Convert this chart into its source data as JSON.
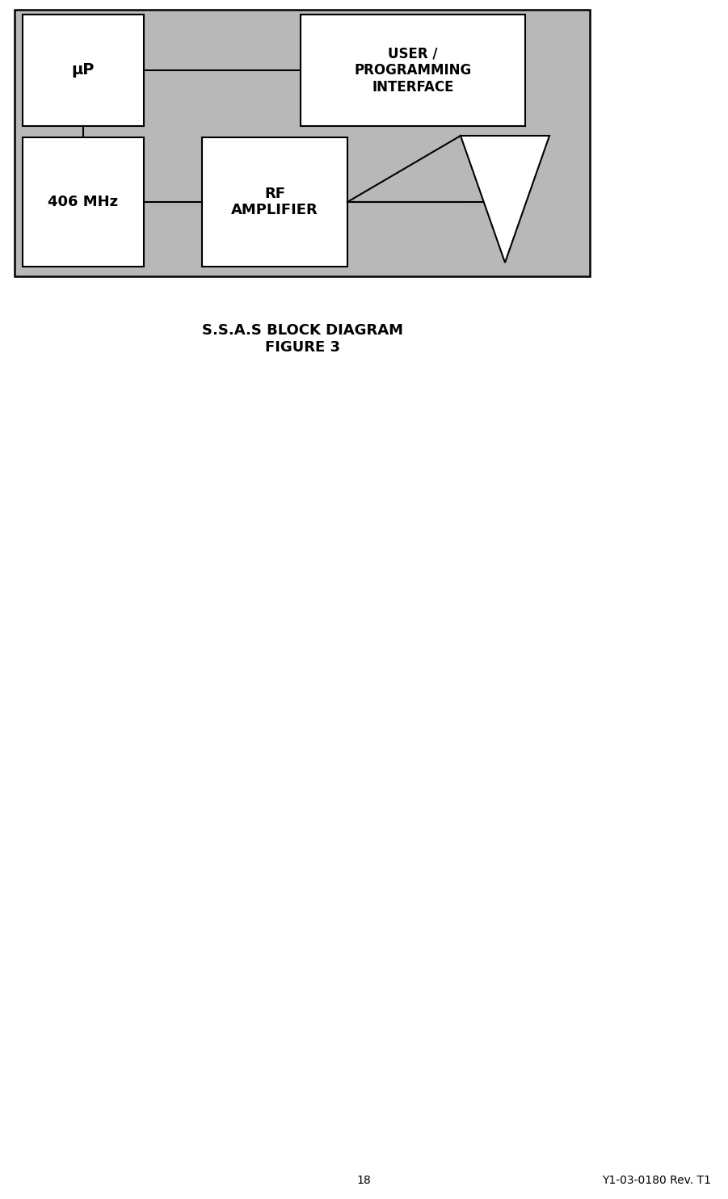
{
  "fig_width": 9.01,
  "fig_height": 14.84,
  "dpi": 100,
  "bg_color": "#ffffff",
  "gray_bg": "#b8b8b8",
  "white": "#ffffff",
  "black": "#000000",
  "title_line1": "S.S.A.S BLOCK DIAGRAM",
  "title_line2": "FIGURE 3",
  "footer_page": "18",
  "footer_ref": "Y1-03-0180 Rev. T1"
}
